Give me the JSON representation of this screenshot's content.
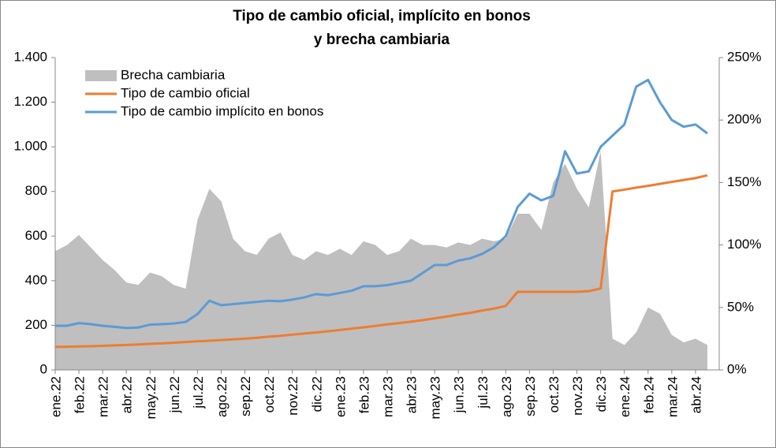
{
  "chart_data": {
    "type": "line",
    "title_lines": [
      "Tipo de cambio oficial, implícito en bonos",
      "y brecha cambiaria"
    ],
    "categories": [
      "ene.22",
      null,
      "feb.22",
      null,
      "mar.22",
      null,
      "abr.22",
      null,
      "may.22",
      null,
      "jun.22",
      null,
      "jul.22",
      null,
      "ago.22",
      null,
      "sep.22",
      null,
      "oct.22",
      null,
      "nov.22",
      null,
      "dic.22",
      null,
      "ene.23",
      null,
      "feb.23",
      null,
      "mar.23",
      null,
      "abr.23",
      null,
      "may.23",
      null,
      "jun.23",
      null,
      "jul.23",
      null,
      "ago.23",
      null,
      "sep.23",
      null,
      "oct.23",
      null,
      "nov.23",
      null,
      "dic.23",
      null,
      "ene.24",
      null,
      "feb.24",
      null,
      "mar.24",
      null,
      "abr.24",
      null
    ],
    "series": [
      {
        "name": "Brecha cambiaria",
        "color": "#bfbfbf",
        "kind": "area",
        "axis": "y2",
        "values": [
          95,
          100,
          108,
          98,
          88,
          80,
          70,
          68,
          78,
          75,
          68,
          65,
          120,
          145,
          135,
          105,
          95,
          92,
          105,
          110,
          92,
          88,
          95,
          92,
          97,
          92,
          103,
          100,
          92,
          95,
          105,
          100,
          100,
          98,
          102,
          100,
          105,
          103,
          105,
          125,
          125,
          112,
          150,
          165,
          145,
          130,
          175,
          25,
          20,
          30,
          50,
          45,
          28,
          22,
          25,
          20
        ]
      },
      {
        "name": "Tipo de cambio oficial",
        "color": "#ed7d31",
        "kind": "line",
        "values": [
          103,
          104,
          105,
          106,
          108,
          110,
          112,
          114,
          117,
          119,
          122,
          125,
          128,
          131,
          134,
          137,
          140,
          144,
          149,
          153,
          158,
          163,
          168,
          173,
          179,
          185,
          191,
          197,
          204,
          210,
          216,
          223,
          231,
          239,
          248,
          256,
          266,
          275,
          287,
          350,
          350,
          350,
          350,
          350,
          350,
          353,
          365,
          800,
          808,
          817,
          825,
          834,
          843,
          851,
          860,
          872
        ]
      },
      {
        "name": "Tipo de cambio implícito en bonos",
        "color": "#5b9bd5",
        "kind": "line",
        "values": [
          198,
          198,
          210,
          205,
          198,
          193,
          188,
          190,
          203,
          205,
          208,
          215,
          250,
          310,
          290,
          295,
          300,
          305,
          310,
          308,
          315,
          325,
          340,
          335,
          345,
          355,
          375,
          375,
          380,
          390,
          400,
          435,
          470,
          470,
          490,
          500,
          520,
          550,
          600,
          730,
          790,
          760,
          780,
          980,
          880,
          890,
          1000,
          1050,
          1100,
          1270,
          1300,
          1200,
          1120,
          1090,
          1100,
          1060
        ]
      }
    ],
    "ylim": [
      0,
      1400
    ],
    "yticks": [
      0,
      200,
      400,
      600,
      800,
      {
        "value": 1000,
        "label": "1.000"
      },
      {
        "value": 1200,
        "label": "1.200"
      },
      {
        "value": 1400,
        "label": "1.400"
      }
    ],
    "y2lim": [
      0,
      250
    ],
    "y2ticks": [
      {
        "value": 0,
        "label": "0%"
      },
      {
        "value": 50,
        "label": "50%"
      },
      {
        "value": 100,
        "label": "100%"
      },
      {
        "value": 150,
        "label": "150%"
      },
      {
        "value": 200,
        "label": "200%"
      },
      {
        "value": 250,
        "label": "250%"
      }
    ],
    "grid": false,
    "legend": "upper-left"
  }
}
